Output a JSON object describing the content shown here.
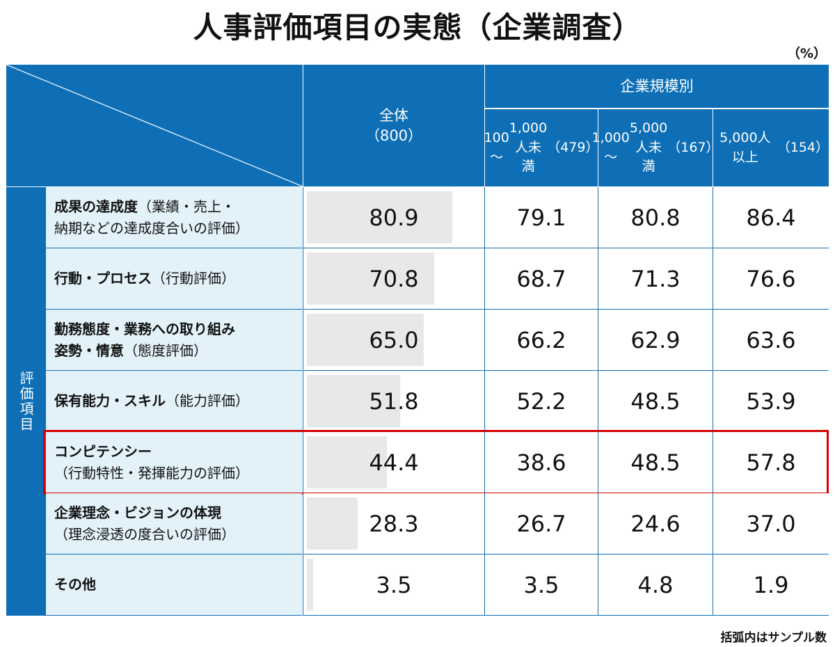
{
  "title": "人事評価項目の実態（企業調査）",
  "unit": "（%）",
  "footnote": "括弧内はサンプル数",
  "header": {
    "group": "企業規模別",
    "columns": [
      {
        "line1": "全体",
        "line2": "",
        "n": "（800）"
      },
      {
        "line1": "100～",
        "line2": "1,000人未満",
        "n": "（479）"
      },
      {
        "line1": "1,000～",
        "line2": "5,000人未満",
        "n": "（167）"
      },
      {
        "line1": "5,000人以上",
        "line2": "",
        "n": "（154）"
      }
    ]
  },
  "side_label": "評価項目",
  "rows": [
    {
      "main": "成果の達成度",
      "sub": "（業績・売上・",
      "line2": "納期などの達成度合いの評価）",
      "values": [
        "80.9",
        "79.1",
        "80.8",
        "86.4"
      ]
    },
    {
      "main": "行動・プロセス",
      "sub": "（行動評価）",
      "line2": "",
      "values": [
        "70.8",
        "68.7",
        "71.3",
        "76.6"
      ]
    },
    {
      "main": "勤務態度・業務への取り組み",
      "sub": "",
      "line2main": "姿勢・情意",
      "line2": "（態度評価）",
      "values": [
        "65.0",
        "66.2",
        "62.9",
        "63.6"
      ]
    },
    {
      "main": "保有能力・スキル",
      "sub": "（能力評価）",
      "line2": "",
      "values": [
        "51.8",
        "52.2",
        "48.5",
        "53.9"
      ]
    },
    {
      "main": "コンピテンシー",
      "sub": "",
      "line2": "（行動特性・発揮能力の評価）",
      "values": [
        "44.4",
        "38.6",
        "48.5",
        "57.8"
      ],
      "highlight": true
    },
    {
      "main": "企業理念・ビジョンの体現",
      "sub": "",
      "line2": "（理念浸透の度合いの評価）",
      "values": [
        "28.3",
        "26.7",
        "24.6",
        "37.0"
      ]
    },
    {
      "main": "その他",
      "sub": "",
      "line2": "",
      "values": [
        "3.5",
        "3.5",
        "4.8",
        "1.9"
      ]
    }
  ],
  "colors": {
    "header": "#0e6fb6",
    "label_bg": "#e3f2f9",
    "bar": "#e8e8e8",
    "highlight": "#d40000"
  },
  "chart_data": {
    "type": "table",
    "title": "人事評価項目の実態（企業調査）",
    "unit": "%",
    "categories": [
      "成果の達成度",
      "行動・プロセス",
      "勤務態度・業務への取り組み姿勢・情意",
      "保有能力・スキル",
      "コンピテンシー",
      "企業理念・ビジョンの体現",
      "その他"
    ],
    "series": [
      {
        "name": "全体（800）",
        "values": [
          80.9,
          70.8,
          65.0,
          51.8,
          44.4,
          28.3,
          3.5
        ]
      },
      {
        "name": "100～1,000人未満（479）",
        "values": [
          79.1,
          68.7,
          66.2,
          52.2,
          38.6,
          26.7,
          3.5
        ]
      },
      {
        "name": "1,000～5,000人未満（167）",
        "values": [
          80.8,
          71.3,
          62.9,
          48.5,
          48.5,
          24.6,
          4.8
        ]
      },
      {
        "name": "5,000人以上（154）",
        "values": [
          86.4,
          76.6,
          63.6,
          53.9,
          57.8,
          37.0,
          1.9
        ]
      }
    ],
    "bar_scale_max": 100
  }
}
